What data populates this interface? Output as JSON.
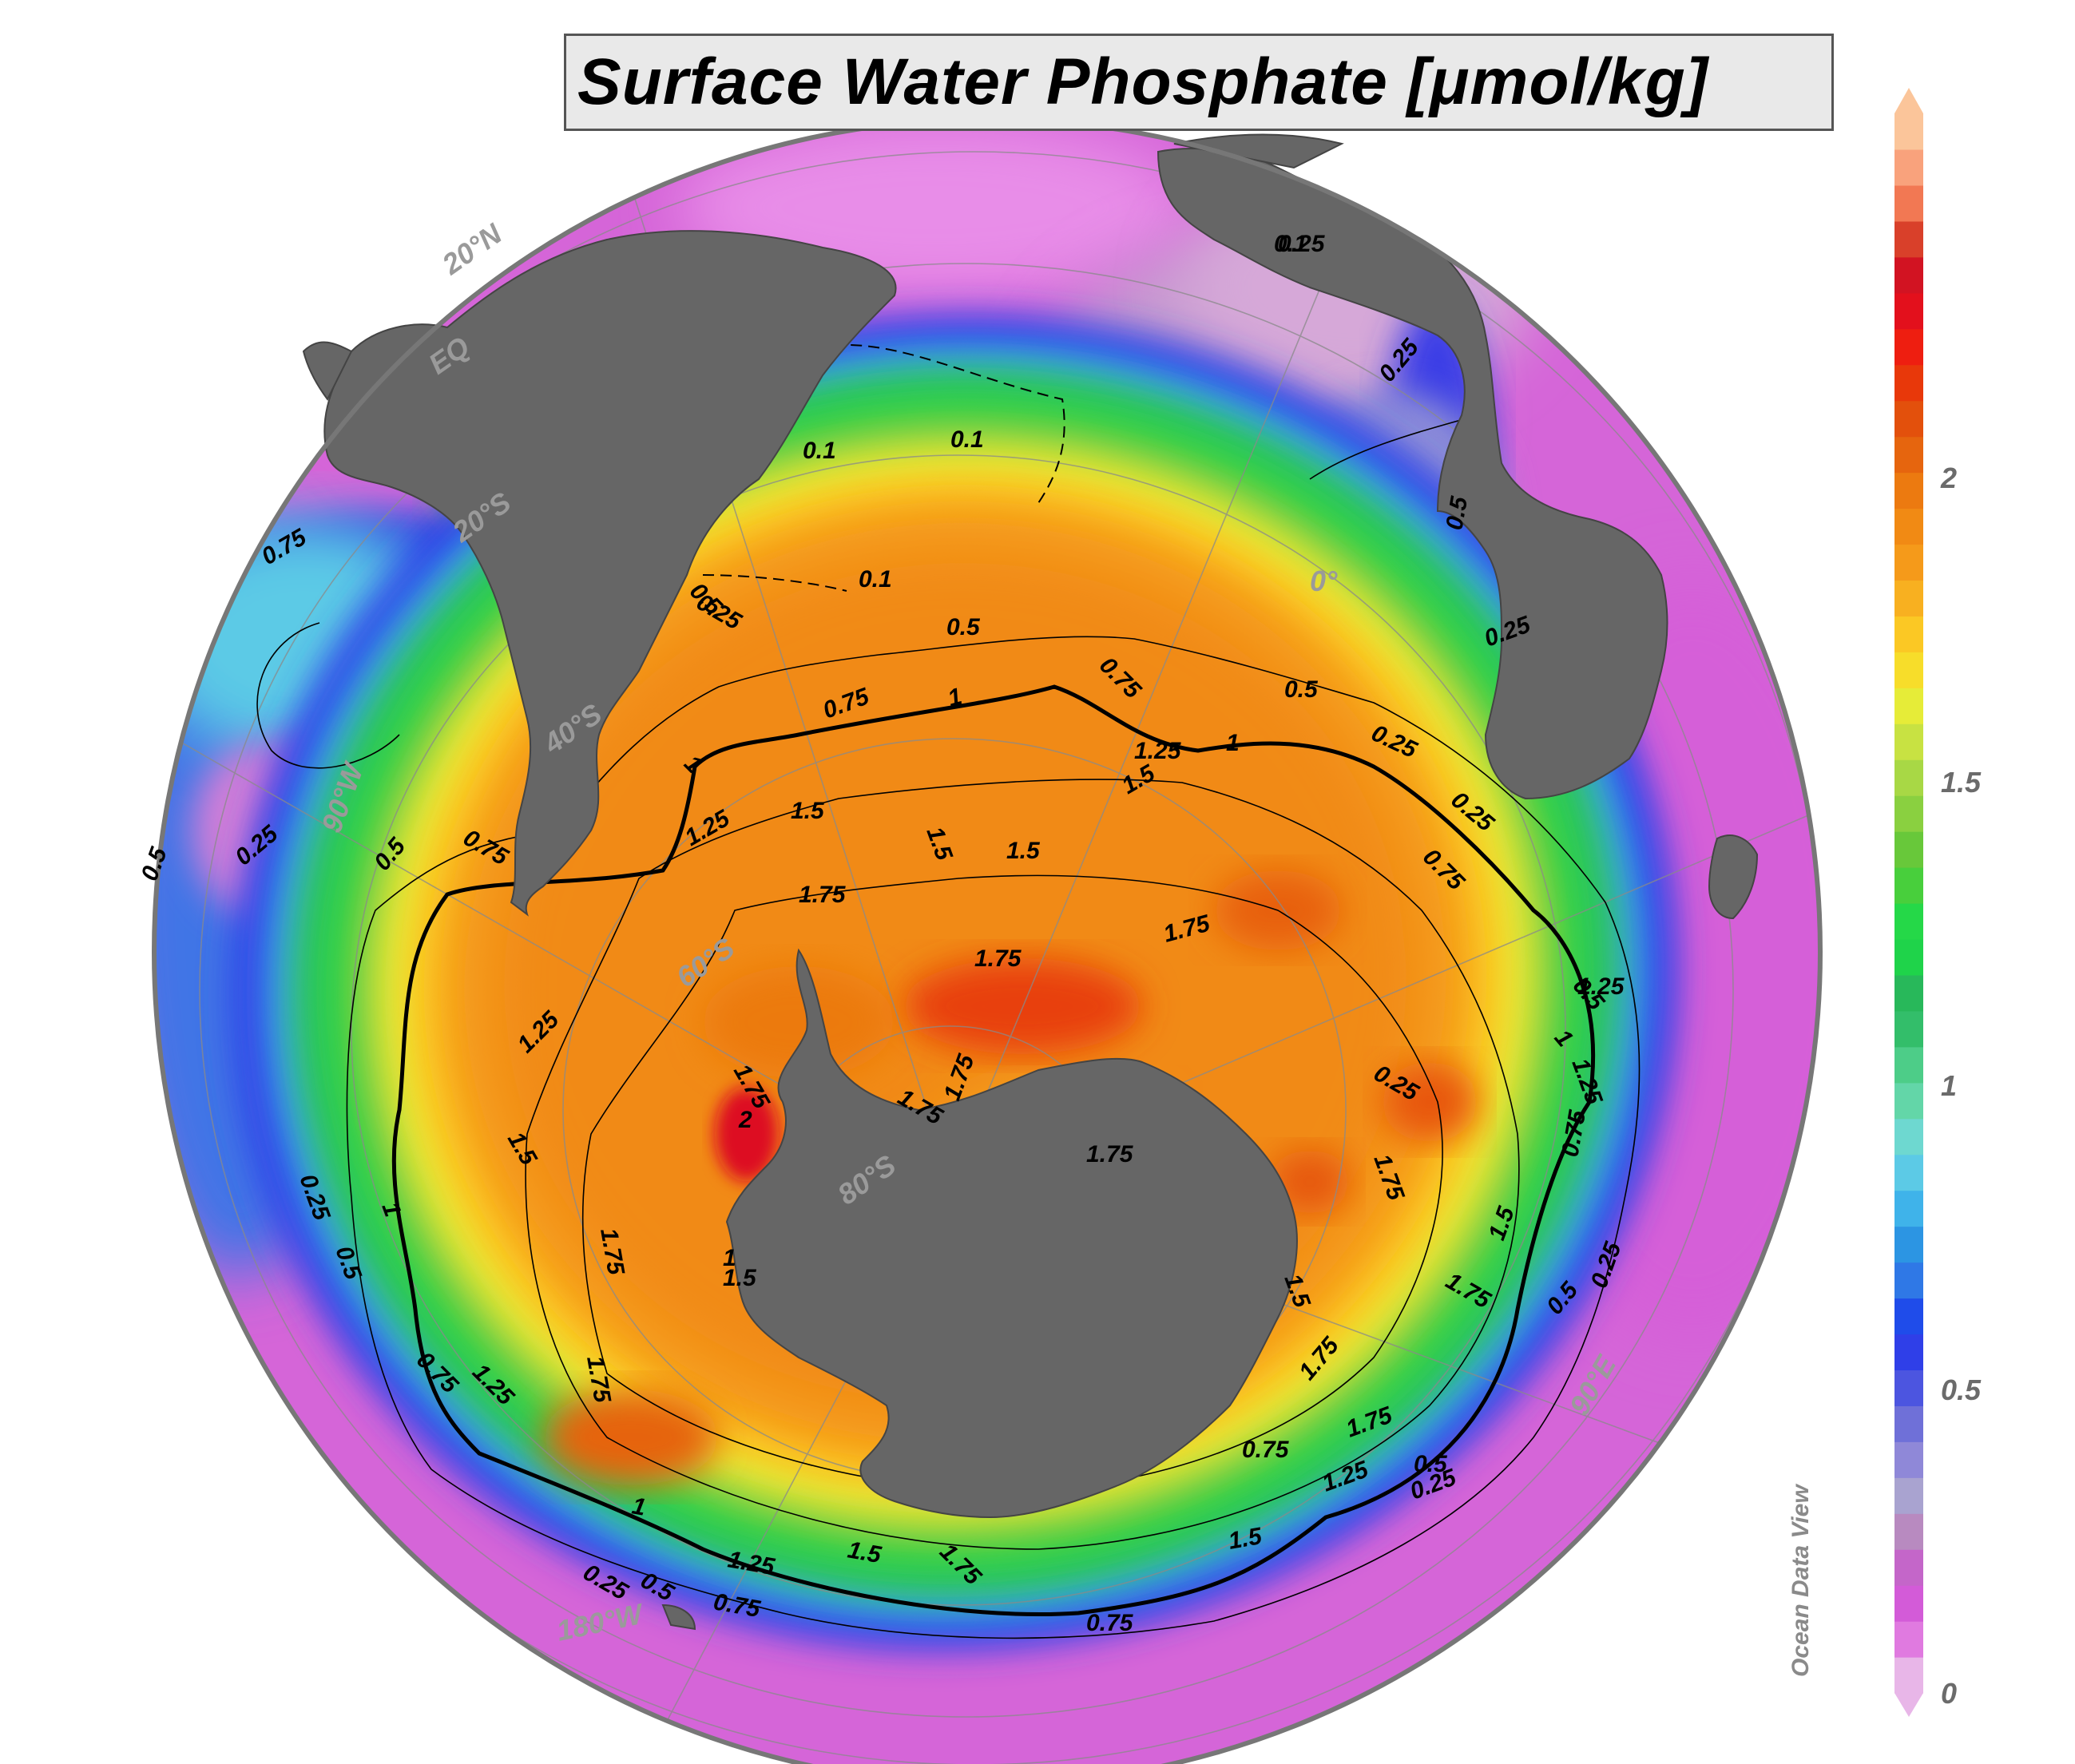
{
  "title": "Surface Water Phosphate [μmol/kg]",
  "credit": "Ocean Data View",
  "colorbar": {
    "min": 0,
    "max": 2.6,
    "ticks": [
      {
        "value": 0,
        "label": "0"
      },
      {
        "value": 0.5,
        "label": "0.5"
      },
      {
        "value": 1,
        "label": "1"
      },
      {
        "value": 1.5,
        "label": "1.5"
      },
      {
        "value": 2,
        "label": "2"
      }
    ],
    "colors": [
      "#e8b6e8",
      "#e07ae0",
      "#d35bd8",
      "#c466c9",
      "#b88ac0",
      "#a9a3d0",
      "#8f88d8",
      "#6f70d8",
      "#4c55e0",
      "#2f3fe8",
      "#1f4cea",
      "#2f78e6",
      "#2c95e3",
      "#3fb3ea",
      "#5ccae6",
      "#6ed8d0",
      "#63d6a8",
      "#4dcd88",
      "#33be6a",
      "#28b85a",
      "#1fd34a",
      "#25d848",
      "#48cf3c",
      "#68c83a",
      "#8ad040",
      "#a8d845",
      "#c8e242",
      "#e6ec38",
      "#f7dd2a",
      "#fbc824",
      "#f8b020",
      "#f59a1a",
      "#f18a14",
      "#ec7a10",
      "#e6650e",
      "#e3500c",
      "#e8380a",
      "#ee1e10",
      "#e3101c",
      "#d21322",
      "#d9402a",
      "#f27853",
      "#f9a27c",
      "#fbc59a"
    ]
  },
  "gridlines": {
    "latitudes": [
      "20°N",
      "EQ",
      "20°S",
      "40°S",
      "60°S",
      "80°S"
    ],
    "longitudes": [
      "0°",
      "90°E",
      "90°W",
      "180°W"
    ]
  },
  "contour_labels": [
    "0.1",
    "0.1",
    "0.1",
    "0.1",
    "0.25",
    "0.25",
    "0.25",
    "0.25",
    "0.25",
    "0.25",
    "0.25",
    "0.25",
    "0.25",
    "0.25",
    "0.25",
    "0.5",
    "0.5",
    "0.5",
    "0.5",
    "0.5",
    "0.5",
    "0.5",
    "0.5",
    "0.5",
    "0.5",
    "0.5",
    "0.75",
    "0.75",
    "0.75",
    "0.75",
    "0.75",
    "0.75",
    "0.75",
    "0.75",
    "0.75",
    "0.75",
    "1",
    "1",
    "1",
    "1",
    "1",
    "1",
    "1.25",
    "1.25",
    "1.25",
    "1.25",
    "1.25",
    "1.25",
    "1.25",
    "1.25",
    "1.5",
    "1.5",
    "1.5",
    "1.5",
    "1.5",
    "1.5",
    "1.5",
    "1.5",
    "1.5",
    "1.5",
    "1.75",
    "1.75",
    "1.75",
    "1.75",
    "1.75",
    "1.75",
    "1.75",
    "1.75",
    "1.75",
    "1.75",
    "1.75",
    "1.75",
    "1.75",
    "2",
    "1.75",
    "1",
    "0.25"
  ]
}
